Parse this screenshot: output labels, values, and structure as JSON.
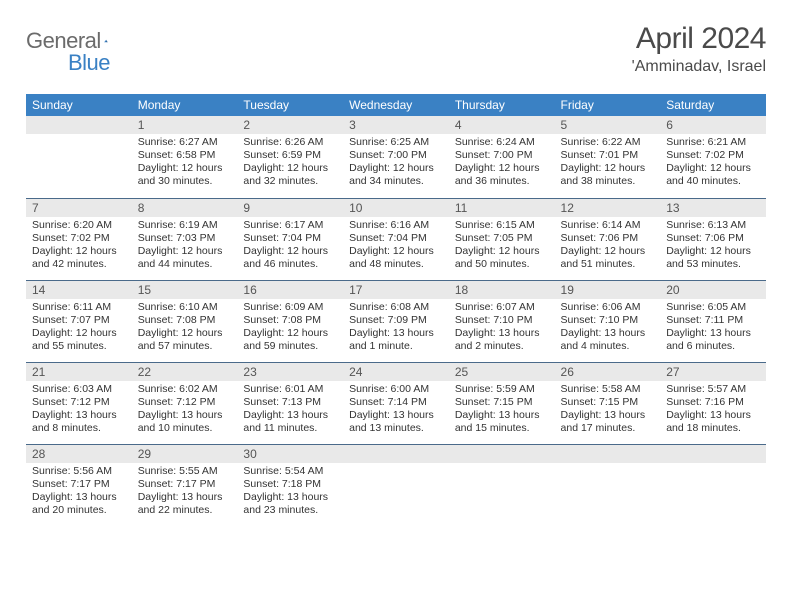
{
  "logo": {
    "word1": "General",
    "word2": "Blue"
  },
  "title": "April 2024",
  "location": "'Amminadav, Israel",
  "colors": {
    "header_bg": "#3a81c4",
    "header_fg": "#ffffff",
    "daynum_bg": "#e9e9e9",
    "border": "#4a6a8a",
    "text": "#333333",
    "logo_gray": "#6b6b6b",
    "logo_blue": "#3a81c4"
  },
  "day_headers": [
    "Sunday",
    "Monday",
    "Tuesday",
    "Wednesday",
    "Thursday",
    "Friday",
    "Saturday"
  ],
  "weeks": [
    [
      {
        "n": "",
        "lines": [
          "",
          "",
          "",
          ""
        ]
      },
      {
        "n": "1",
        "lines": [
          "Sunrise: 6:27 AM",
          "Sunset: 6:58 PM",
          "Daylight: 12 hours",
          "and 30 minutes."
        ]
      },
      {
        "n": "2",
        "lines": [
          "Sunrise: 6:26 AM",
          "Sunset: 6:59 PM",
          "Daylight: 12 hours",
          "and 32 minutes."
        ]
      },
      {
        "n": "3",
        "lines": [
          "Sunrise: 6:25 AM",
          "Sunset: 7:00 PM",
          "Daylight: 12 hours",
          "and 34 minutes."
        ]
      },
      {
        "n": "4",
        "lines": [
          "Sunrise: 6:24 AM",
          "Sunset: 7:00 PM",
          "Daylight: 12 hours",
          "and 36 minutes."
        ]
      },
      {
        "n": "5",
        "lines": [
          "Sunrise: 6:22 AM",
          "Sunset: 7:01 PM",
          "Daylight: 12 hours",
          "and 38 minutes."
        ]
      },
      {
        "n": "6",
        "lines": [
          "Sunrise: 6:21 AM",
          "Sunset: 7:02 PM",
          "Daylight: 12 hours",
          "and 40 minutes."
        ]
      }
    ],
    [
      {
        "n": "7",
        "lines": [
          "Sunrise: 6:20 AM",
          "Sunset: 7:02 PM",
          "Daylight: 12 hours",
          "and 42 minutes."
        ]
      },
      {
        "n": "8",
        "lines": [
          "Sunrise: 6:19 AM",
          "Sunset: 7:03 PM",
          "Daylight: 12 hours",
          "and 44 minutes."
        ]
      },
      {
        "n": "9",
        "lines": [
          "Sunrise: 6:17 AM",
          "Sunset: 7:04 PM",
          "Daylight: 12 hours",
          "and 46 minutes."
        ]
      },
      {
        "n": "10",
        "lines": [
          "Sunrise: 6:16 AM",
          "Sunset: 7:04 PM",
          "Daylight: 12 hours",
          "and 48 minutes."
        ]
      },
      {
        "n": "11",
        "lines": [
          "Sunrise: 6:15 AM",
          "Sunset: 7:05 PM",
          "Daylight: 12 hours",
          "and 50 minutes."
        ]
      },
      {
        "n": "12",
        "lines": [
          "Sunrise: 6:14 AM",
          "Sunset: 7:06 PM",
          "Daylight: 12 hours",
          "and 51 minutes."
        ]
      },
      {
        "n": "13",
        "lines": [
          "Sunrise: 6:13 AM",
          "Sunset: 7:06 PM",
          "Daylight: 12 hours",
          "and 53 minutes."
        ]
      }
    ],
    [
      {
        "n": "14",
        "lines": [
          "Sunrise: 6:11 AM",
          "Sunset: 7:07 PM",
          "Daylight: 12 hours",
          "and 55 minutes."
        ]
      },
      {
        "n": "15",
        "lines": [
          "Sunrise: 6:10 AM",
          "Sunset: 7:08 PM",
          "Daylight: 12 hours",
          "and 57 minutes."
        ]
      },
      {
        "n": "16",
        "lines": [
          "Sunrise: 6:09 AM",
          "Sunset: 7:08 PM",
          "Daylight: 12 hours",
          "and 59 minutes."
        ]
      },
      {
        "n": "17",
        "lines": [
          "Sunrise: 6:08 AM",
          "Sunset: 7:09 PM",
          "Daylight: 13 hours",
          "and 1 minute."
        ]
      },
      {
        "n": "18",
        "lines": [
          "Sunrise: 6:07 AM",
          "Sunset: 7:10 PM",
          "Daylight: 13 hours",
          "and 2 minutes."
        ]
      },
      {
        "n": "19",
        "lines": [
          "Sunrise: 6:06 AM",
          "Sunset: 7:10 PM",
          "Daylight: 13 hours",
          "and 4 minutes."
        ]
      },
      {
        "n": "20",
        "lines": [
          "Sunrise: 6:05 AM",
          "Sunset: 7:11 PM",
          "Daylight: 13 hours",
          "and 6 minutes."
        ]
      }
    ],
    [
      {
        "n": "21",
        "lines": [
          "Sunrise: 6:03 AM",
          "Sunset: 7:12 PM",
          "Daylight: 13 hours",
          "and 8 minutes."
        ]
      },
      {
        "n": "22",
        "lines": [
          "Sunrise: 6:02 AM",
          "Sunset: 7:12 PM",
          "Daylight: 13 hours",
          "and 10 minutes."
        ]
      },
      {
        "n": "23",
        "lines": [
          "Sunrise: 6:01 AM",
          "Sunset: 7:13 PM",
          "Daylight: 13 hours",
          "and 11 minutes."
        ]
      },
      {
        "n": "24",
        "lines": [
          "Sunrise: 6:00 AM",
          "Sunset: 7:14 PM",
          "Daylight: 13 hours",
          "and 13 minutes."
        ]
      },
      {
        "n": "25",
        "lines": [
          "Sunrise: 5:59 AM",
          "Sunset: 7:15 PM",
          "Daylight: 13 hours",
          "and 15 minutes."
        ]
      },
      {
        "n": "26",
        "lines": [
          "Sunrise: 5:58 AM",
          "Sunset: 7:15 PM",
          "Daylight: 13 hours",
          "and 17 minutes."
        ]
      },
      {
        "n": "27",
        "lines": [
          "Sunrise: 5:57 AM",
          "Sunset: 7:16 PM",
          "Daylight: 13 hours",
          "and 18 minutes."
        ]
      }
    ],
    [
      {
        "n": "28",
        "lines": [
          "Sunrise: 5:56 AM",
          "Sunset: 7:17 PM",
          "Daylight: 13 hours",
          "and 20 minutes."
        ]
      },
      {
        "n": "29",
        "lines": [
          "Sunrise: 5:55 AM",
          "Sunset: 7:17 PM",
          "Daylight: 13 hours",
          "and 22 minutes."
        ]
      },
      {
        "n": "30",
        "lines": [
          "Sunrise: 5:54 AM",
          "Sunset: 7:18 PM",
          "Daylight: 13 hours",
          "and 23 minutes."
        ]
      },
      {
        "n": "",
        "lines": [
          "",
          "",
          "",
          ""
        ]
      },
      {
        "n": "",
        "lines": [
          "",
          "",
          "",
          ""
        ]
      },
      {
        "n": "",
        "lines": [
          "",
          "",
          "",
          ""
        ]
      },
      {
        "n": "",
        "lines": [
          "",
          "",
          "",
          ""
        ]
      }
    ]
  ]
}
